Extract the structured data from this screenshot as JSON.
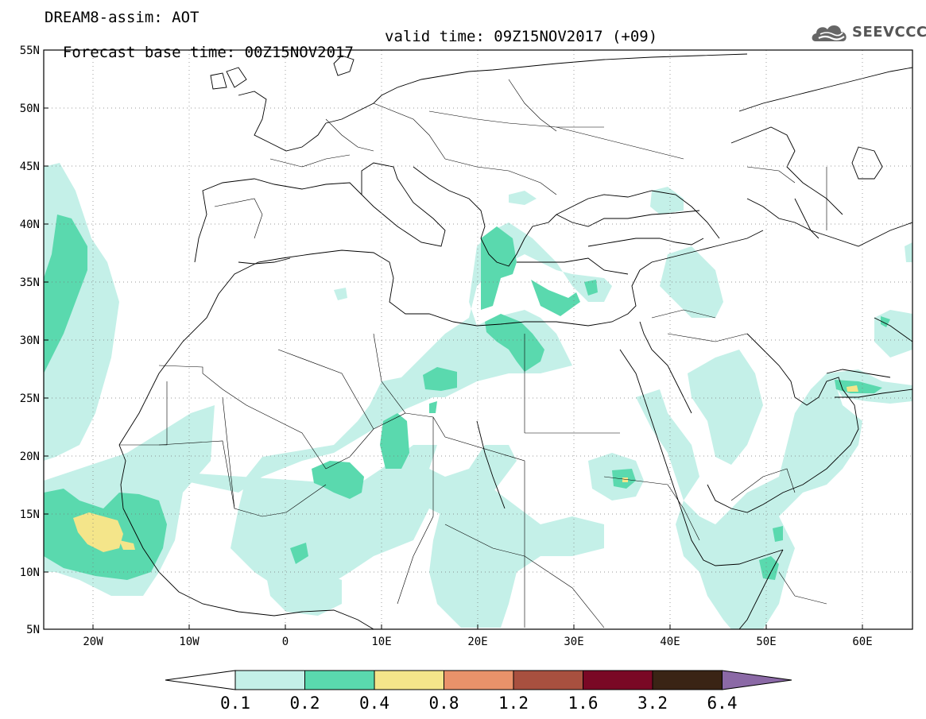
{
  "header": {
    "title": "DREAM8-assim: AOT",
    "base_time": "Forecast base time: 00Z15NOV2017",
    "valid_time": "valid time: 09Z15NOV2017 (+09)"
  },
  "logo": {
    "text": "SEEVCCC",
    "icon": "cloud-logo-icon"
  },
  "map": {
    "lat_labels": [
      "55N",
      "50N",
      "45N",
      "40N",
      "35N",
      "30N",
      "25N",
      "20N",
      "15N",
      "10N",
      "5N"
    ],
    "lon_labels": [
      "20W",
      "10W",
      "0",
      "10E",
      "20E",
      "30E",
      "40E",
      "50E",
      "60E"
    ],
    "lat_range": [
      5,
      55
    ],
    "lon_range": [
      -25,
      65
    ],
    "grid": true
  },
  "colorbar": {
    "labels": [
      "0.1",
      "0.2",
      "0.4",
      "0.8",
      "1.2",
      "1.6",
      "3.2",
      "6.4"
    ],
    "colors": [
      "#ffffff",
      "#c4f0e8",
      "#5ad9ae",
      "#f4e58a",
      "#e9926a",
      "#a8503f",
      "#7a0825",
      "#3a2415",
      "#8b69a6"
    ]
  }
}
